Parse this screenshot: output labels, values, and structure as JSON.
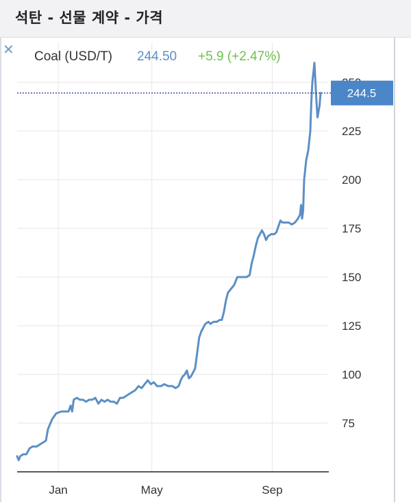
{
  "header": {
    "title": "석탄 - 선물 계약 - 가격"
  },
  "legend": {
    "name": "Coal (USD/T)",
    "price": "244.50",
    "change": "+5.9 (+2.47%)"
  },
  "colors": {
    "line": "#5b8fc4",
    "change_positive": "#6cc04a",
    "price_box": "#4a86c8"
  },
  "icons": {
    "close": "close-icon"
  },
  "chart_data": {
    "type": "line",
    "series": [
      {
        "name": "Coal (USD/T)",
        "points": [
          [
            0,
            58
          ],
          [
            1.5,
            56
          ],
          [
            3,
            58
          ],
          [
            6,
            59
          ],
          [
            9,
            59
          ],
          [
            12,
            62
          ],
          [
            15,
            63
          ],
          [
            19,
            63
          ],
          [
            22,
            64
          ],
          [
            25,
            65
          ],
          [
            28,
            66
          ],
          [
            30,
            72
          ],
          [
            34,
            77
          ],
          [
            38,
            80
          ],
          [
            43,
            81
          ],
          [
            47,
            81
          ],
          [
            50,
            81
          ],
          [
            52,
            84
          ],
          [
            53.5,
            81
          ],
          [
            55,
            87
          ],
          [
            58,
            88
          ],
          [
            61,
            87
          ],
          [
            64,
            87
          ],
          [
            67,
            86
          ],
          [
            70,
            87
          ],
          [
            73,
            87
          ],
          [
            76,
            88
          ],
          [
            79,
            85
          ],
          [
            82,
            87
          ],
          [
            85,
            86
          ],
          [
            88,
            87
          ],
          [
            91,
            86
          ],
          [
            94,
            86
          ],
          [
            97,
            85
          ],
          [
            100,
            88
          ],
          [
            103,
            88
          ],
          [
            106,
            89
          ],
          [
            109,
            90
          ],
          [
            112,
            91
          ],
          [
            115,
            92
          ],
          [
            118,
            94
          ],
          [
            121,
            93
          ],
          [
            124,
            95
          ],
          [
            127,
            97
          ],
          [
            130,
            95
          ],
          [
            133,
            96
          ],
          [
            136,
            94
          ],
          [
            140,
            94
          ],
          [
            143,
            95
          ],
          [
            147,
            94
          ],
          [
            151,
            94
          ],
          [
            154,
            93
          ],
          [
            157,
            94
          ],
          [
            159,
            97
          ],
          [
            161,
            99
          ],
          [
            163,
            100
          ],
          [
            165,
            102
          ],
          [
            167,
            98
          ],
          [
            169,
            99
          ],
          [
            171,
            101
          ],
          [
            173,
            103
          ],
          [
            175,
            111
          ],
          [
            177,
            119
          ],
          [
            179,
            122
          ],
          [
            181,
            124
          ],
          [
            183,
            126
          ],
          [
            186,
            127
          ],
          [
            188,
            126
          ],
          [
            191,
            127
          ],
          [
            194,
            127
          ],
          [
            197,
            128
          ],
          [
            199,
            128
          ],
          [
            201,
            132
          ],
          [
            203,
            138
          ],
          [
            205,
            142
          ],
          [
            208,
            144
          ],
          [
            211,
            146
          ],
          [
            214,
            150
          ],
          [
            217,
            150
          ],
          [
            220,
            150
          ],
          [
            223,
            150
          ],
          [
            226,
            151
          ],
          [
            228,
            157
          ],
          [
            230,
            161
          ],
          [
            232,
            166
          ],
          [
            234,
            170
          ],
          [
            236,
            172
          ],
          [
            238,
            174
          ],
          [
            240,
            172
          ],
          [
            242,
            169
          ],
          [
            244,
            171
          ],
          [
            247,
            172
          ],
          [
            250,
            172
          ],
          [
            252,
            173
          ],
          [
            254,
            176
          ],
          [
            256,
            179
          ],
          [
            258,
            178
          ],
          [
            261,
            178
          ],
          [
            264,
            178
          ],
          [
            267,
            177
          ],
          [
            270,
            178
          ],
          [
            273,
            180
          ],
          [
            275,
            182
          ],
          [
            276,
            187
          ],
          [
            277,
            180
          ],
          [
            278,
            184
          ],
          [
            279,
            200
          ],
          [
            281,
            210
          ],
          [
            283,
            215
          ],
          [
            285,
            225
          ],
          [
            286,
            240
          ],
          [
            287,
            250
          ],
          [
            288,
            255
          ],
          [
            289,
            260
          ],
          [
            290,
            250
          ],
          [
            291,
            240
          ],
          [
            292,
            232
          ],
          [
            293,
            235
          ],
          [
            294,
            238
          ],
          [
            295,
            244.5
          ]
        ]
      }
    ],
    "current_value": 244.5,
    "x_ticks": [
      {
        "x": 40,
        "label": "Jan"
      },
      {
        "x": 131,
        "label": "May"
      },
      {
        "x": 248,
        "label": "Sep"
      }
    ],
    "y_ticks": [
      {
        "v": 75,
        "label": "75"
      },
      {
        "v": 100,
        "label": "100"
      },
      {
        "v": 125,
        "label": "125"
      },
      {
        "v": 150,
        "label": "150"
      },
      {
        "v": 175,
        "label": "175"
      },
      {
        "v": 200,
        "label": "200"
      },
      {
        "v": 225,
        "label": "225"
      },
      {
        "v": 250,
        "label": "250"
      }
    ],
    "price_label": "244.5",
    "grid": true
  }
}
